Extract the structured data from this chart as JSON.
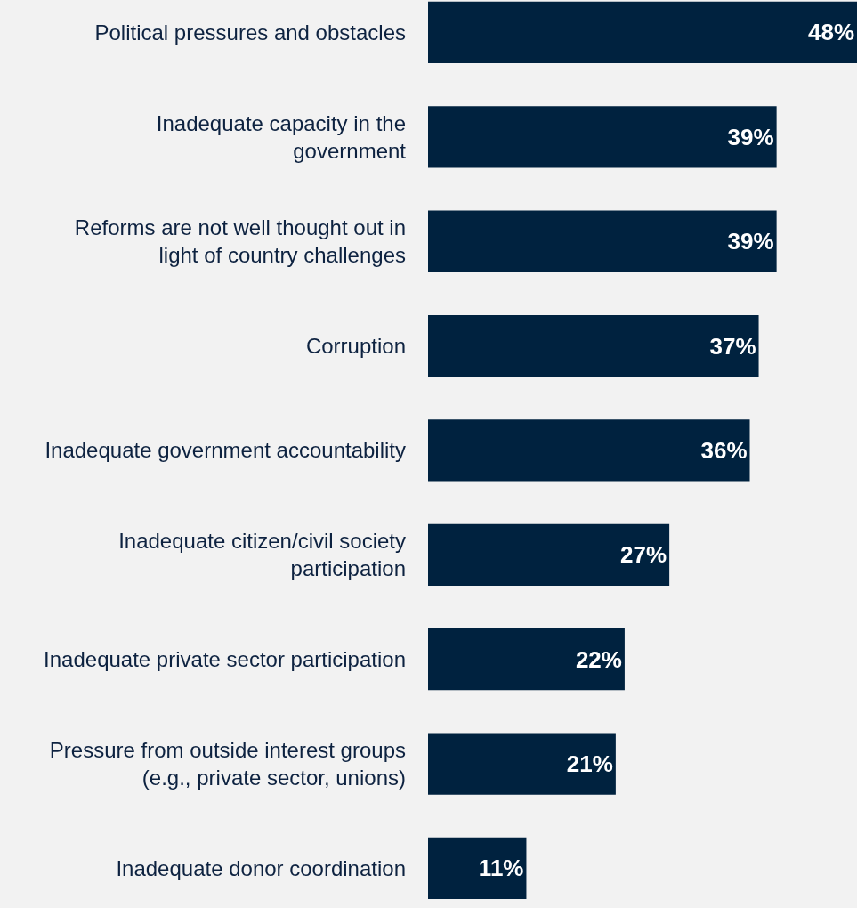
{
  "chart_data": {
    "type": "bar",
    "orientation": "horizontal",
    "categories": [
      "Political pressures and obstacles",
      "Inadequate capacity in the\ngovernment",
      "Reforms are not well thought out in\nlight of country challenges",
      "Corruption",
      "Inadequate government accountability",
      "Inadequate citizen/civil society\nparticipation",
      "Inadequate private sector participation",
      "Pressure from outside interest groups\n(e.g., private sector, unions)",
      "Inadequate donor coordination"
    ],
    "values": [
      48,
      39,
      39,
      37,
      36,
      27,
      22,
      21,
      11
    ],
    "value_labels": [
      "48%",
      "39%",
      "39%",
      "37%",
      "36%",
      "27%",
      "22%",
      "21%",
      "11%"
    ],
    "color": "#00223f"
  }
}
